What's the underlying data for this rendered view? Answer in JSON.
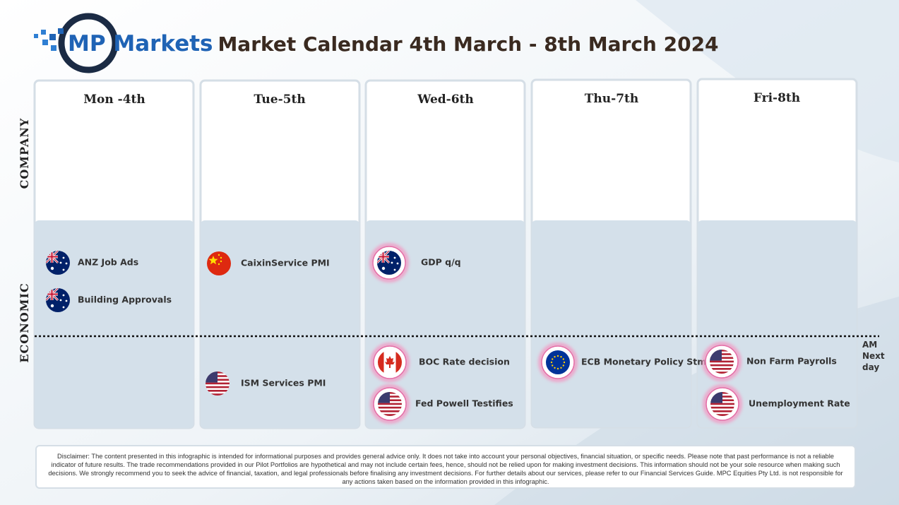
{
  "header": {
    "logo": "MP Markets",
    "title": "Market Calendar 4th March - 8th March 2024"
  },
  "row_labels": [
    "COMPANY",
    "ECONOMIC"
  ],
  "days": [
    {
      "label": "Mon -4th",
      "events": [
        "ANZ Job Ads",
        "Building Approvals"
      ]
    },
    {
      "label": "Tue-5th",
      "events": [
        "CaixinService PMI",
        "ISM Services PMI"
      ]
    },
    {
      "label": "Wed-6th",
      "events": [
        "GDP q/q",
        "BOC Rate decision",
        "Fed Powell Testifies"
      ]
    },
    {
      "label": "Thu-7th",
      "events": [
        "ECB Monetary Policy Stmt"
      ]
    },
    {
      "label": "Fri-8th",
      "events": [
        "Non Farm Payrolls",
        "Unemployment Rate"
      ]
    }
  ],
  "side_note": [
    "AM",
    "Next",
    "day"
  ],
  "disclaimer": "Disclaimer: The content presented in this infographic is intended for informational purposes and provides general advice only. It does not take into account your personal objectives, financial situation, or specific needs. Please note that past performance is not a reliable indicator of future results. The trade recommendations provided in our Pilot Portfolios are hypothetical and may not include certain fees, hence, should not be relied upon for making investment decisions. This information should not be your sole resource when making such decisions. We strongly recommend you to seek the advice of financial, taxation, and legal professionals before finalising any investment decisions. For further details about our services, please refer to our Financial Services Guide. MPC Equities Pty Ltd. is not responsible for any actions taken based on the information provided in this infographic."
}
